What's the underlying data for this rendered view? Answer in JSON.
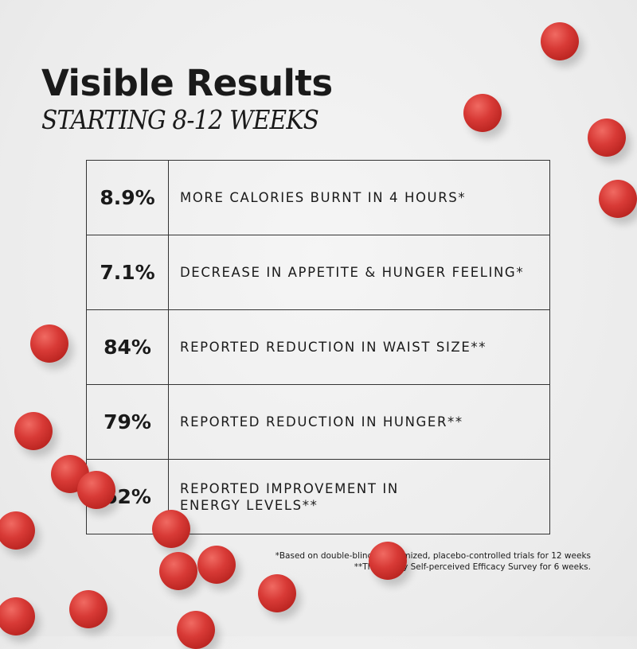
{
  "header": {
    "title": "Visible Results",
    "subtitle": "STARTING 8-12 WEEKS"
  },
  "results": [
    {
      "value": "8.9%",
      "label": "MORE CALORIES BURNT IN 4 HOURS*"
    },
    {
      "value": "7.1%",
      "label": "DECREASE IN APPETITE & HUNGER FEELING*"
    },
    {
      "value": "84%",
      "label": "REPORTED REDUCTION IN WAIST SIZE**"
    },
    {
      "value": "79%",
      "label": "REPORTED REDUCTION IN HUNGER**"
    },
    {
      "value": "62%",
      "label": "REPORTED IMPROVEMENT IN\nENERGY LEVELS**"
    }
  ],
  "footnotes": [
    "*Based on double-blind, randomized, placebo-controlled trials for 12 weeks",
    "**Third Party Self-perceived Efficacy Survey for 6 weeks."
  ],
  "colors": {
    "accent": "#d83a36",
    "text": "#1a1a1a",
    "background": "#eeeeee"
  }
}
